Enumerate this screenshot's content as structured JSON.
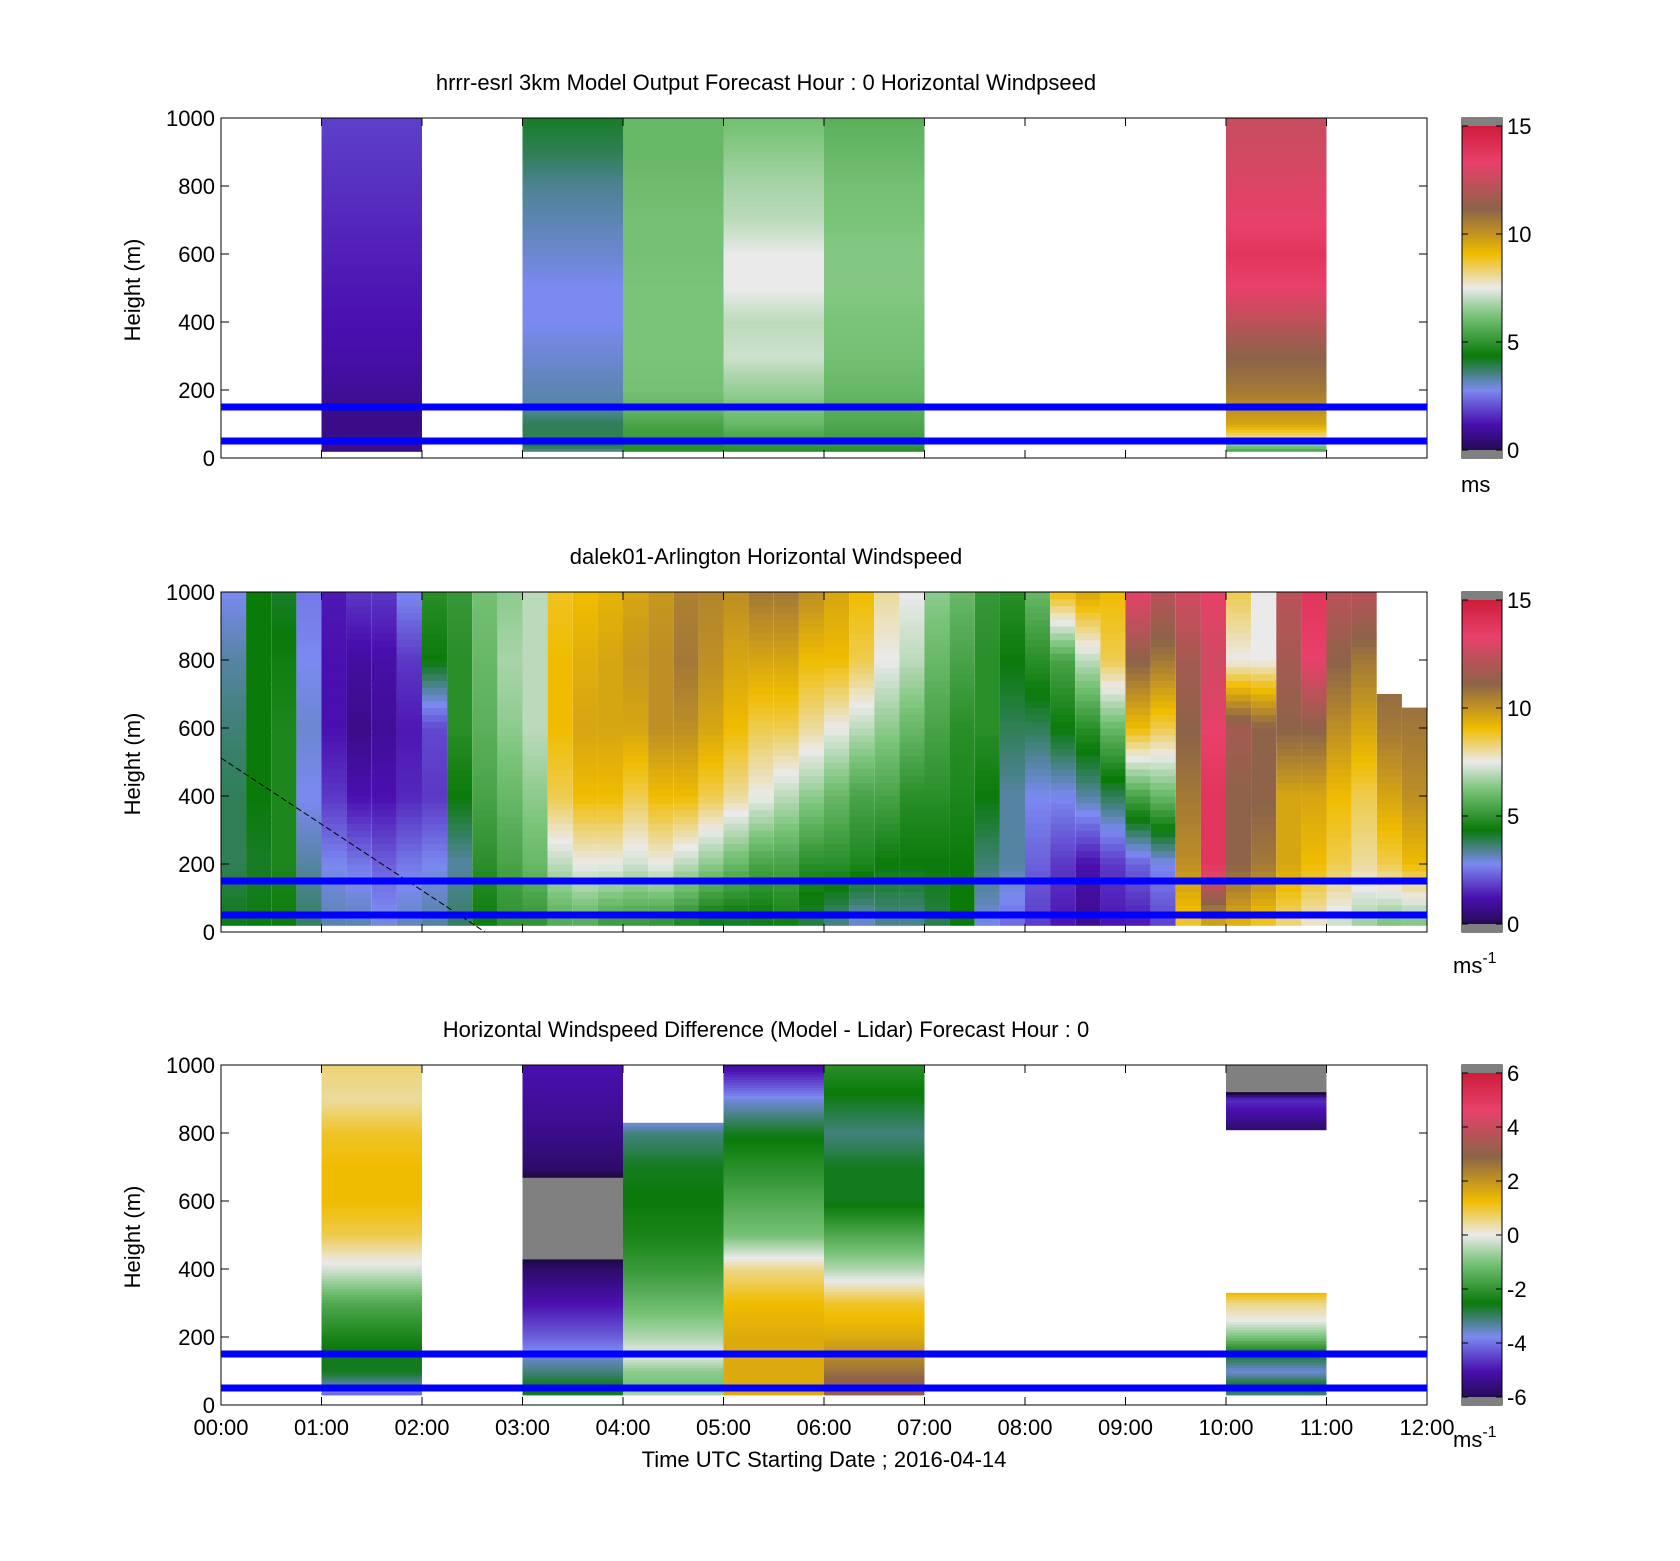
{
  "colors": {
    "frame": "#000000",
    "hline": "#0000ff",
    "background": "#ffffff"
  },
  "charts": [
    {
      "title": "hrrr-esrl 3km Model Output   Forecast Hour : 0 Horizontal Windpseed",
      "ylabel": "Height (m)",
      "yticks": [
        "0",
        "200",
        "400",
        "600",
        "800",
        "1000"
      ],
      "cbar_ticks": [
        "0",
        "5",
        "10",
        "15"
      ],
      "cbar_unit": "ms",
      "cbar_exp": ""
    },
    {
      "title": "dalek01-Arlington  Horizontal Windspeed",
      "ylabel": "Height (m)",
      "yticks": [
        "0",
        "200",
        "400",
        "600",
        "800",
        "1000"
      ],
      "cbar_ticks": [
        "0",
        "5",
        "10",
        "15"
      ],
      "cbar_unit": "ms",
      "cbar_exp": "-1"
    },
    {
      "title": "Horizontal Windspeed Difference (Model - Lidar) Forecast Hour : 0",
      "ylabel": "Height (m)",
      "yticks": [
        "0",
        "200",
        "400",
        "600",
        "800",
        "1000"
      ],
      "cbar_ticks": [
        "-6",
        "-4",
        "-2",
        "0",
        "2",
        "4",
        "6"
      ],
      "cbar_unit": "ms",
      "cbar_exp": "-1",
      "xticks": [
        "00:00",
        "01:00",
        "02:00",
        "03:00",
        "04:00",
        "05:00",
        "06:00",
        "07:00",
        "08:00",
        "09:00",
        "10:00",
        "11:00",
        "12:00"
      ],
      "xlabel": "Time UTC  Starting Date ; 2016-04-14"
    }
  ],
  "chart_data": [
    {
      "type": "heatmap",
      "title": "hrrr-esrl 3km Model Output   Forecast Hour : 0 Horizontal Windpseed",
      "ylabel": "Height (m)",
      "xlim_hours": [
        0,
        12
      ],
      "ylim": [
        0,
        1000
      ],
      "clim": [
        0,
        15
      ],
      "colorbar_label": "ms",
      "hlines_m": [
        50,
        150
      ],
      "profiles": [
        {
          "t0": 1,
          "t1": 2,
          "z_m": [
            20,
            40,
            60,
            100,
            150,
            200,
            300,
            400,
            500,
            600,
            700,
            800,
            900,
            1000
          ],
          "v": [
            1,
            1,
            1,
            1,
            1,
            1.2,
            1.4,
            1.5,
            1.6,
            1.7,
            1.8,
            1.9,
            2.0,
            2.1
          ]
        },
        {
          "t0": 3,
          "t1": 4,
          "z_m": [
            20,
            40,
            60,
            100,
            150,
            200,
            300,
            400,
            500,
            600,
            700,
            800,
            900,
            1000
          ],
          "v": [
            3.5,
            4.2,
            4.0,
            4.0,
            3.5,
            3.4,
            3.2,
            3.0,
            3.0,
            3.2,
            3.4,
            3.6,
            4.0,
            4.3
          ]
        },
        {
          "t0": 4,
          "t1": 5,
          "z_m": [
            20,
            40,
            60,
            100,
            150,
            200,
            300,
            400,
            500,
            600,
            700,
            800,
            900,
            1000
          ],
          "v": [
            5.0,
            5.0,
            5.3,
            5.5,
            6.0,
            6.2,
            6.3,
            6.3,
            6.3,
            6.2,
            6.2,
            6.1,
            6.0,
            6.0
          ]
        },
        {
          "t0": 5,
          "t1": 6,
          "z_m": [
            20,
            40,
            60,
            100,
            150,
            200,
            300,
            400,
            500,
            600,
            700,
            800,
            900,
            1000
          ],
          "v": [
            5.0,
            5.2,
            5.5,
            6.0,
            6.3,
            6.6,
            7.2,
            7.0,
            7.5,
            7.5,
            7.0,
            6.8,
            6.5,
            6.2
          ]
        },
        {
          "t0": 6,
          "t1": 7,
          "z_m": [
            20,
            40,
            60,
            100,
            150,
            200,
            300,
            400,
            500,
            600,
            700,
            800,
            900,
            1000
          ],
          "v": [
            5.0,
            5.2,
            5.4,
            5.6,
            5.8,
            6.0,
            6.2,
            6.3,
            6.4,
            6.4,
            6.3,
            6.2,
            6.0,
            5.8
          ]
        },
        {
          "t0": 10,
          "t1": 11,
          "z_m": [
            20,
            40,
            60,
            100,
            150,
            200,
            300,
            400,
            500,
            600,
            700,
            800,
            900,
            1000
          ],
          "v": [
            5.5,
            6.5,
            8.0,
            9.5,
            10.0,
            10.5,
            11.0,
            12.0,
            13.0,
            13.5,
            13.0,
            12.8,
            12.5,
            12.3
          ]
        }
      ]
    },
    {
      "type": "heatmap",
      "title": "dalek01-Arlington  Horizontal Windspeed",
      "ylabel": "Height (m)",
      "xlim_hours": [
        0,
        12
      ],
      "ylim": [
        0,
        1000
      ],
      "clim": [
        0,
        15
      ],
      "colorbar_label": "ms-1",
      "hlines_m": [
        50,
        150
      ],
      "column_times_hours": [
        0,
        0.25,
        0.5,
        0.75,
        1,
        1.25,
        1.5,
        1.75,
        2,
        2.25,
        2.5,
        2.75,
        3,
        3.25,
        3.5,
        3.75,
        4,
        4.25,
        4.5,
        4.75,
        5,
        5.25,
        5.5,
        5.75,
        6,
        6.25,
        6.5,
        6.75,
        7,
        7.25,
        7.5,
        7.75,
        8,
        8.25,
        8.5,
        8.75,
        9,
        9.25,
        9.5,
        9.75,
        10,
        10.25,
        10.5,
        10.75,
        11,
        11.25,
        11.5,
        11.75
      ],
      "column_max_height_m": [
        1000,
        1000,
        1000,
        1000,
        1000,
        1000,
        1000,
        1000,
        1000,
        1000,
        1000,
        1000,
        1000,
        1000,
        1000,
        1000,
        1000,
        1000,
        1000,
        1000,
        1000,
        1000,
        1000,
        1000,
        1000,
        1000,
        1000,
        1000,
        1000,
        1000,
        1000,
        1000,
        1000,
        1000,
        1000,
        1000,
        1000,
        1000,
        1000,
        1000,
        1000,
        1000,
        1000,
        1000,
        1000,
        1000,
        700,
        660
      ],
      "profile_heights_m": [
        0,
        200,
        400,
        600,
        800,
        1000
      ],
      "profiles": [
        [
          4.5,
          4.0,
          4.0,
          3.8,
          3.5,
          3.0
        ],
        [
          4.5,
          4.3,
          4.5,
          4.5,
          4.5,
          4.5
        ],
        [
          4.5,
          4.8,
          4.8,
          4.8,
          4.6,
          4.3
        ],
        [
          4.0,
          3.5,
          3.0,
          3.2,
          3.0,
          2.8
        ],
        [
          3.5,
          3.0,
          2.0,
          1.5,
          1.5,
          1.6
        ],
        [
          3.5,
          2.8,
          1.5,
          1.0,
          1.3,
          2.0
        ],
        [
          3.2,
          2.5,
          1.5,
          1.2,
          1.4,
          2.0
        ],
        [
          3.4,
          2.8,
          1.8,
          1.6,
          2.0,
          3.0
        ],
        [
          3.6,
          3.0,
          2.0,
          2.2,
          4.5,
          5.0
        ],
        [
          4.0,
          3.5,
          4.5,
          5.0,
          5.0,
          5.2
        ],
        [
          4.5,
          5.0,
          5.5,
          5.8,
          6.0,
          6.2
        ],
        [
          5.0,
          5.5,
          6.0,
          6.5,
          6.8,
          6.5
        ],
        [
          5.0,
          6.0,
          6.5,
          7.0,
          7.0,
          7.0
        ],
        [
          5.5,
          7.0,
          8.5,
          9.0,
          9.0,
          8.8
        ],
        [
          5.5,
          7.5,
          9.0,
          9.5,
          9.3,
          9.0
        ],
        [
          5.0,
          7.5,
          9.0,
          9.5,
          9.5,
          9.2
        ],
        [
          5.0,
          7.2,
          8.5,
          9.5,
          9.8,
          9.5
        ],
        [
          4.8,
          7.5,
          9.0,
          10.0,
          10.0,
          9.8
        ],
        [
          4.5,
          7.0,
          9.0,
          10.0,
          10.5,
          10.3
        ],
        [
          4.0,
          6.5,
          8.5,
          9.5,
          10.0,
          10.2
        ],
        [
          4.0,
          6.0,
          8.0,
          9.0,
          9.5,
          10.0
        ],
        [
          4.2,
          5.5,
          7.5,
          8.5,
          9.5,
          10.5
        ],
        [
          4.5,
          5.5,
          7.0,
          8.5,
          9.5,
          10.5
        ],
        [
          4.0,
          5.0,
          6.5,
          8.0,
          9.0,
          10.0
        ],
        [
          3.5,
          5.0,
          6.0,
          7.5,
          9.0,
          9.5
        ],
        [
          3.0,
          4.8,
          5.5,
          7.0,
          8.5,
          9.0
        ],
        [
          3.5,
          4.5,
          5.5,
          6.5,
          7.5,
          8.0
        ],
        [
          3.5,
          4.5,
          5.0,
          6.0,
          7.0,
          7.5
        ],
        [
          4.0,
          4.5,
          5.0,
          5.5,
          6.0,
          6.5
        ],
        [
          4.5,
          4.5,
          4.8,
          5.0,
          5.5,
          6.0
        ],
        [
          3.0,
          3.8,
          4.5,
          5.0,
          5.0,
          5.2
        ],
        [
          2.5,
          3.5,
          3.5,
          4.0,
          4.5,
          5.0
        ],
        [
          2.0,
          2.5,
          3.0,
          4.0,
          5.0,
          6.0
        ],
        [
          1.5,
          2.0,
          3.0,
          4.5,
          5.5,
          9.0
        ],
        [
          1.0,
          1.5,
          3.5,
          5.0,
          7.0,
          9.5
        ],
        [
          1.5,
          2.0,
          4.0,
          6.0,
          8.5,
          9.0
        ],
        [
          1.5,
          2.5,
          5.5,
          9.0,
          11.0,
          13.0
        ],
        [
          2.0,
          3.0,
          6.0,
          8.5,
          10.5,
          12.0
        ],
        [
          8.5,
          10.0,
          10.5,
          11.0,
          11.5,
          12.5
        ],
        [
          9.0,
          13.5,
          13.5,
          13.0,
          12.5,
          13.0
        ],
        [
          9.0,
          11.0,
          11.0,
          11.5,
          7.5,
          8.5
        ],
        [
          8.5,
          10.5,
          11.0,
          11.0,
          7.5,
          7.5
        ],
        [
          8.0,
          9.5,
          9.5,
          11.0,
          11.5,
          12.0
        ],
        [
          7.5,
          9.0,
          9.5,
          11.0,
          13.0,
          13.5
        ],
        [
          7.0,
          8.5,
          9.0,
          10.0,
          11.0,
          12.0
        ],
        [
          6.5,
          8.0,
          8.5,
          9.5,
          10.5,
          12.0
        ],
        [
          6.0,
          8.5,
          9.5,
          10.5,
          11.0,
          11.5
        ],
        [
          6.0,
          9.0,
          10.0,
          10.5,
          11.0,
          11.0
        ]
      ]
    },
    {
      "type": "heatmap",
      "title": "Horizontal Windspeed Difference (Model - Lidar) Forecast Hour : 0",
      "xlabel": "Time UTC  Starting Date ; 2016-04-14",
      "ylabel": "Height (m)",
      "xlim_hours": [
        0,
        12
      ],
      "ylim": [
        0,
        1000
      ],
      "clim": [
        -6,
        6
      ],
      "colorbar_label": "ms-1",
      "hlines_m": [
        50,
        150
      ],
      "profiles": [
        {
          "t0": 1,
          "t1": 2,
          "z_m": [
            30,
            60,
            100,
            150,
            200,
            300,
            400,
            500,
            600,
            700,
            800,
            900,
            1000
          ],
          "v": [
            -4,
            -3.2,
            -2.5,
            -2.5,
            -2.2,
            -1.5,
            -0.2,
            0.8,
            1.2,
            1.2,
            1.0,
            0.4,
            0.6
          ]
        },
        {
          "t0": 3,
          "t1": 4,
          "z_m": [
            30,
            60,
            100,
            150,
            200,
            300,
            400,
            500,
            600,
            700,
            800,
            900,
            1000
          ],
          "v": [
            -2.5,
            -2.5,
            -3.0,
            -3.5,
            -4.0,
            -4.8,
            -5.5,
            -7,
            -7,
            -5.5,
            -5.2,
            -5.0,
            -4.8
          ]
        },
        {
          "t0": 4,
          "t1": 5,
          "z_m": [
            30,
            60,
            100,
            150,
            200,
            300,
            400,
            500,
            600,
            700,
            800,
            830
          ],
          "v": [
            -0.5,
            -1.0,
            -0.8,
            0,
            -0.5,
            -1.2,
            -1.8,
            -2.2,
            -2.4,
            -2.5,
            -3.0,
            -3.5
          ]
        },
        {
          "t0": 5,
          "t1": 6,
          "z_m": [
            30,
            60,
            100,
            150,
            200,
            300,
            400,
            500,
            600,
            700,
            800,
            900,
            1000
          ],
          "v": [
            1.5,
            1.5,
            1.5,
            1.5,
            1.5,
            1.2,
            0.5,
            -1.0,
            -1.5,
            -2.0,
            -2.5,
            -3.5,
            -5.0
          ]
        },
        {
          "t0": 6,
          "t1": 7,
          "z_m": [
            30,
            60,
            100,
            150,
            200,
            300,
            400,
            500,
            600,
            700,
            800,
            900,
            1000
          ],
          "v": [
            3.0,
            3.0,
            2.5,
            2.0,
            1.5,
            1.0,
            -0.5,
            -1.5,
            -2.5,
            -2.5,
            -3.0,
            -2.5,
            -2.0
          ]
        },
        {
          "t0": 10,
          "t1": 11,
          "z_m": [
            30,
            60,
            100,
            150,
            200,
            250,
            300,
            330
          ],
          "v": [
            -3.0,
            -2.5,
            -3.5,
            -2.5,
            -1.0,
            0,
            0.5,
            1.2
          ]
        },
        {
          "t0": 10,
          "t1": 11,
          "z_m": [
            810,
            850,
            900,
            930,
            1000
          ],
          "v": [
            -5.5,
            -5.0,
            -4.5,
            -7,
            -7
          ]
        }
      ]
    }
  ]
}
